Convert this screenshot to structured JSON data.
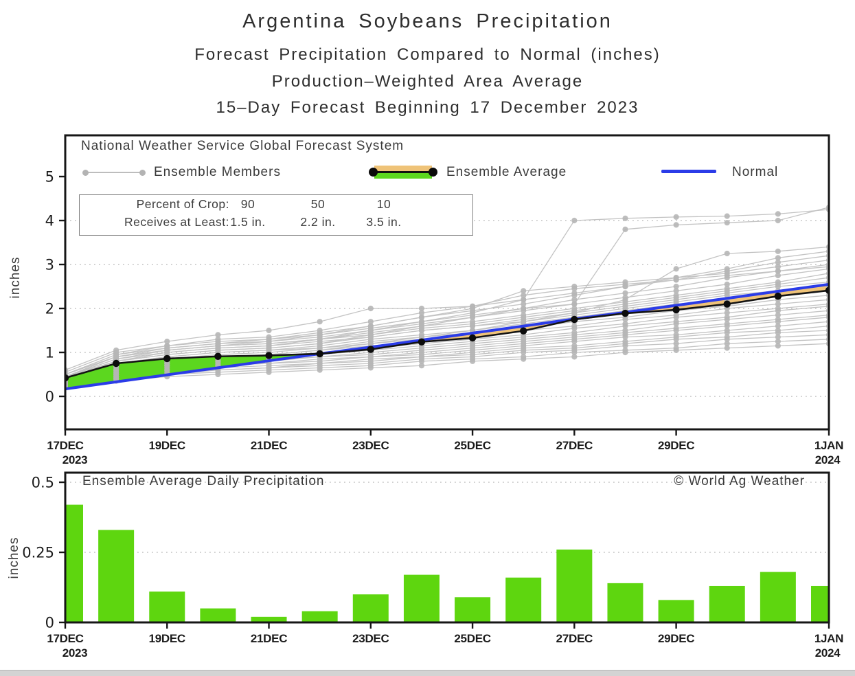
{
  "titles": {
    "line1": "Argentina Soybeans Precipitation",
    "line2": "Forecast Precipitation Compared to Normal (inches)",
    "line3": "Production–Weighted Area Average",
    "line4": "15–Day Forecast Beginning 17 December 2023"
  },
  "colors": {
    "ensemble_member_line": "#c3c3c3",
    "ensemble_member_dot": "#b6b6b6",
    "ensemble_average": "#141414",
    "normal": "#2b3ce8",
    "surplus_fill": "#5cd71f",
    "deficit_fill": "#efc378",
    "bar": "#5ed60f",
    "grid": "#c2c2c2",
    "frame": "#161616"
  },
  "top_chart": {
    "ylabel": "inches",
    "legend": {
      "source": "National Weather Service Global Forecast System",
      "members_label": "Ensemble Members",
      "average_label": "Ensemble Average",
      "normal_label": "Normal"
    },
    "crop_box": {
      "row1_label": "Percent of Crop:",
      "row1_values": [
        "90",
        "50",
        "10"
      ],
      "row2_label": "Receives at Least:",
      "row2_values": [
        "1.5 in.",
        "2.2 in.",
        "3.5 in."
      ]
    }
  },
  "bottom_chart": {
    "title": "Ensemble Average Daily Precipitation",
    "watermark": "© World Ag Weather",
    "ylabel": "inches"
  },
  "chart_data": [
    {
      "type": "line",
      "title": "Forecast cumulative precipitation compared to normal (inches)",
      "x": [
        "17DEC",
        "18DEC",
        "19DEC",
        "20DEC",
        "21DEC",
        "22DEC",
        "23DEC",
        "24DEC",
        "25DEC",
        "26DEC",
        "27DEC",
        "28DEC",
        "29DEC",
        "30DEC",
        "31DEC",
        "1JAN"
      ],
      "x_tick_indices": [
        0,
        2,
        4,
        6,
        8,
        10,
        12,
        15
      ],
      "x_tick_labels": [
        "17DEC",
        "19DEC",
        "21DEC",
        "23DEC",
        "25DEC",
        "27DEC",
        "29DEC",
        "1JAN"
      ],
      "x_year_labels": [
        {
          "index": 0,
          "label": "2023"
        },
        {
          "index": 15,
          "label": "2024"
        }
      ],
      "ylabel": "inches",
      "ylim": [
        -0.75,
        5.95
      ],
      "yticks": [
        0,
        1,
        2,
        3,
        4,
        5
      ],
      "grid": "dotted horizontal",
      "legend_position": "top inside",
      "fills": [
        {
          "name": "average above normal (surplus)",
          "color": "#5cd71f"
        },
        {
          "name": "average below normal (deficit)",
          "color": "#efc378"
        }
      ],
      "series": [
        {
          "name": "Ensemble Average",
          "color": "#141414",
          "values": [
            0.42,
            0.75,
            0.86,
            0.91,
            0.93,
            0.97,
            1.07,
            1.24,
            1.33,
            1.49,
            1.75,
            1.89,
            1.97,
            2.1,
            2.28,
            2.41
          ]
        },
        {
          "name": "Normal",
          "color": "#2b3ce8",
          "values": [
            0.17,
            0.33,
            0.49,
            0.65,
            0.81,
            0.97,
            1.12,
            1.28,
            1.44,
            1.6,
            1.76,
            1.91,
            2.07,
            2.23,
            2.39,
            2.55
          ]
        },
        {
          "name": "Ensemble Member 01",
          "values": [
            0.45,
            0.85,
            1.0,
            1.1,
            1.15,
            1.3,
            1.5,
            1.7,
            1.9,
            2.2,
            4.0,
            4.05,
            4.08,
            4.1,
            4.15,
            4.25
          ]
        },
        {
          "name": "Ensemble Member 02",
          "values": [
            0.4,
            0.8,
            0.95,
            1.05,
            1.1,
            1.2,
            1.4,
            1.6,
            1.8,
            2.0,
            2.1,
            3.8,
            3.9,
            3.95,
            4.0,
            4.3
          ]
        },
        {
          "name": "Ensemble Member 03",
          "values": [
            0.35,
            0.7,
            0.85,
            0.9,
            0.95,
            1.05,
            1.2,
            1.35,
            1.5,
            1.7,
            1.9,
            2.2,
            2.9,
            3.25,
            3.3,
            3.4
          ]
        },
        {
          "name": "Ensemble Member 04",
          "values": [
            0.5,
            0.9,
            1.1,
            1.2,
            1.3,
            1.45,
            1.6,
            1.8,
            1.95,
            2.1,
            2.3,
            2.5,
            2.7,
            2.9,
            3.15,
            3.3
          ]
        },
        {
          "name": "Ensemble Member 05",
          "values": [
            0.6,
            1.05,
            1.25,
            1.4,
            1.5,
            1.7,
            2.0,
            2.0,
            2.05,
            2.2,
            2.35,
            2.5,
            2.65,
            2.85,
            3.05,
            3.2
          ]
        },
        {
          "name": "Ensemble Member 06",
          "values": [
            0.55,
            1.0,
            1.15,
            1.25,
            1.3,
            1.4,
            1.55,
            1.7,
            1.85,
            2.0,
            2.2,
            2.35,
            2.5,
            2.7,
            2.85,
            3.0
          ]
        },
        {
          "name": "Ensemble Member 07",
          "values": [
            0.5,
            0.95,
            1.1,
            1.2,
            1.25,
            1.35,
            1.5,
            1.65,
            1.8,
            1.95,
            2.1,
            2.25,
            2.4,
            2.55,
            2.75,
            2.9
          ]
        },
        {
          "name": "Ensemble Member 08",
          "values": [
            0.45,
            0.85,
            1.05,
            1.15,
            1.2,
            1.3,
            1.45,
            1.6,
            1.7,
            1.85,
            2.0,
            2.15,
            2.3,
            2.45,
            2.6,
            2.8
          ]
        },
        {
          "name": "Ensemble Member 09",
          "values": [
            0.5,
            0.9,
            1.05,
            1.15,
            1.2,
            1.3,
            1.4,
            1.55,
            1.65,
            1.8,
            1.95,
            2.1,
            2.25,
            2.4,
            2.55,
            2.7
          ]
        },
        {
          "name": "Ensemble Member 10",
          "values": [
            0.4,
            0.8,
            0.95,
            1.05,
            1.1,
            1.2,
            1.35,
            1.5,
            1.6,
            1.75,
            1.9,
            2.05,
            2.2,
            2.35,
            2.5,
            2.6
          ]
        },
        {
          "name": "Ensemble Member 11",
          "values": [
            0.45,
            0.8,
            1.0,
            1.1,
            1.15,
            1.25,
            1.35,
            1.5,
            1.6,
            1.7,
            1.85,
            2.0,
            2.15,
            2.3,
            2.4,
            2.5
          ]
        },
        {
          "name": "Ensemble Member 12",
          "values": [
            0.35,
            0.75,
            0.9,
            1.0,
            1.05,
            1.15,
            1.3,
            1.4,
            1.5,
            1.65,
            1.8,
            1.95,
            2.1,
            2.2,
            2.35,
            2.45
          ]
        },
        {
          "name": "Ensemble Member 13",
          "values": [
            0.4,
            0.75,
            0.9,
            1.0,
            1.05,
            1.1,
            1.25,
            1.35,
            1.45,
            1.6,
            1.75,
            1.9,
            2.0,
            2.15,
            2.3,
            2.4
          ]
        },
        {
          "name": "Ensemble Member 14",
          "values": [
            0.35,
            0.7,
            0.85,
            0.95,
            1.0,
            1.1,
            1.2,
            1.3,
            1.4,
            1.55,
            1.7,
            1.8,
            1.95,
            2.05,
            2.2,
            2.3
          ]
        },
        {
          "name": "Ensemble Member 15",
          "values": [
            0.3,
            0.65,
            0.8,
            0.9,
            0.95,
            1.05,
            1.15,
            1.25,
            1.35,
            1.5,
            1.6,
            1.75,
            1.85,
            2.0,
            2.1,
            2.2
          ]
        },
        {
          "name": "Ensemble Member 16",
          "values": [
            0.3,
            0.6,
            0.75,
            0.85,
            0.9,
            1.0,
            1.1,
            1.2,
            1.3,
            1.4,
            1.55,
            1.65,
            1.8,
            1.9,
            2.0,
            2.1
          ]
        },
        {
          "name": "Ensemble Member 17",
          "values": [
            0.25,
            0.6,
            0.75,
            0.8,
            0.85,
            0.95,
            1.05,
            1.15,
            1.25,
            1.35,
            1.45,
            1.6,
            1.7,
            1.8,
            1.95,
            2.05
          ]
        },
        {
          "name": "Ensemble Member 18",
          "values": [
            0.3,
            0.55,
            0.7,
            0.8,
            0.85,
            0.9,
            1.0,
            1.1,
            1.2,
            1.3,
            1.4,
            1.5,
            1.65,
            1.75,
            1.85,
            1.95
          ]
        },
        {
          "name": "Ensemble Member 19",
          "values": [
            0.25,
            0.55,
            0.7,
            0.75,
            0.8,
            0.9,
            0.95,
            1.05,
            1.15,
            1.25,
            1.35,
            1.45,
            1.55,
            1.65,
            1.75,
            1.85
          ]
        },
        {
          "name": "Ensemble Member 20",
          "values": [
            0.25,
            0.5,
            0.65,
            0.7,
            0.75,
            0.85,
            0.9,
            1.0,
            1.1,
            1.2,
            1.3,
            1.4,
            1.5,
            1.6,
            1.7,
            1.8
          ]
        },
        {
          "name": "Ensemble Member 21",
          "values": [
            0.2,
            0.5,
            0.6,
            0.7,
            0.75,
            0.8,
            0.9,
            0.95,
            1.05,
            1.15,
            1.25,
            1.35,
            1.4,
            1.5,
            1.6,
            1.7
          ]
        },
        {
          "name": "Ensemble Member 22",
          "values": [
            0.2,
            0.45,
            0.6,
            0.65,
            0.7,
            0.75,
            0.85,
            0.9,
            1.0,
            1.1,
            1.15,
            1.25,
            1.35,
            1.45,
            1.5,
            1.6
          ]
        },
        {
          "name": "Ensemble Member 23",
          "values": [
            0.2,
            0.45,
            0.55,
            0.6,
            0.65,
            0.75,
            0.8,
            0.9,
            0.95,
            1.05,
            1.1,
            1.2,
            1.3,
            1.35,
            1.45,
            1.5
          ]
        },
        {
          "name": "Ensemble Member 24",
          "values": [
            0.2,
            0.4,
            0.5,
            0.6,
            0.65,
            0.7,
            0.75,
            0.85,
            0.9,
            1.0,
            1.05,
            1.15,
            1.2,
            1.3,
            1.35,
            1.4
          ]
        },
        {
          "name": "Ensemble Member 25",
          "values": [
            0.2,
            0.4,
            0.5,
            0.55,
            0.6,
            0.65,
            0.7,
            0.8,
            0.85,
            0.9,
            1.0,
            1.05,
            1.1,
            1.2,
            1.25,
            1.3
          ]
        },
        {
          "name": "Ensemble Member 26",
          "values": [
            0.2,
            0.35,
            0.45,
            0.5,
            0.55,
            0.6,
            0.65,
            0.7,
            0.8,
            0.85,
            0.9,
            1.0,
            1.05,
            1.1,
            1.15,
            1.2
          ]
        },
        {
          "name": "Ensemble Member 27",
          "values": [
            0.45,
            0.9,
            1.05,
            1.15,
            1.25,
            1.4,
            1.6,
            1.8,
            2.0,
            2.4,
            2.5,
            2.6,
            2.7,
            2.8,
            2.95,
            3.1
          ]
        },
        {
          "name": "Ensemble Member 28",
          "values": [
            0.5,
            0.95,
            1.15,
            1.3,
            1.35,
            1.5,
            1.7,
            1.9,
            2.05,
            2.3,
            2.45,
            2.55,
            2.65,
            2.75,
            2.85,
            2.95
          ]
        }
      ]
    },
    {
      "type": "bar",
      "title": "Ensemble Average Daily Precipitation",
      "watermark": "© World Ag Weather",
      "categories": [
        "17DEC",
        "18DEC",
        "19DEC",
        "20DEC",
        "21DEC",
        "22DEC",
        "23DEC",
        "24DEC",
        "25DEC",
        "26DEC",
        "27DEC",
        "28DEC",
        "29DEC",
        "30DEC",
        "31DEC",
        "1JAN"
      ],
      "values": [
        0.42,
        0.33,
        0.11,
        0.05,
        0.02,
        0.04,
        0.1,
        0.17,
        0.09,
        0.16,
        0.26,
        0.14,
        0.08,
        0.13,
        0.18,
        0.13
      ],
      "x_tick_indices": [
        0,
        2,
        4,
        6,
        8,
        10,
        12,
        15
      ],
      "x_tick_labels": [
        "17DEC",
        "19DEC",
        "21DEC",
        "23DEC",
        "25DEC",
        "27DEC",
        "29DEC",
        "1JAN"
      ],
      "x_year_labels": [
        {
          "index": 0,
          "label": "2023"
        },
        {
          "index": 15,
          "label": "2024"
        }
      ],
      "ylabel": "inches",
      "ylim": [
        0,
        0.535
      ],
      "yticks": [
        0,
        0.25,
        0.5
      ],
      "ytick_labels": [
        "0",
        "0.25",
        "0.5"
      ],
      "bar_color": "#5ed60f",
      "grid": "dotted horizontal"
    }
  ]
}
